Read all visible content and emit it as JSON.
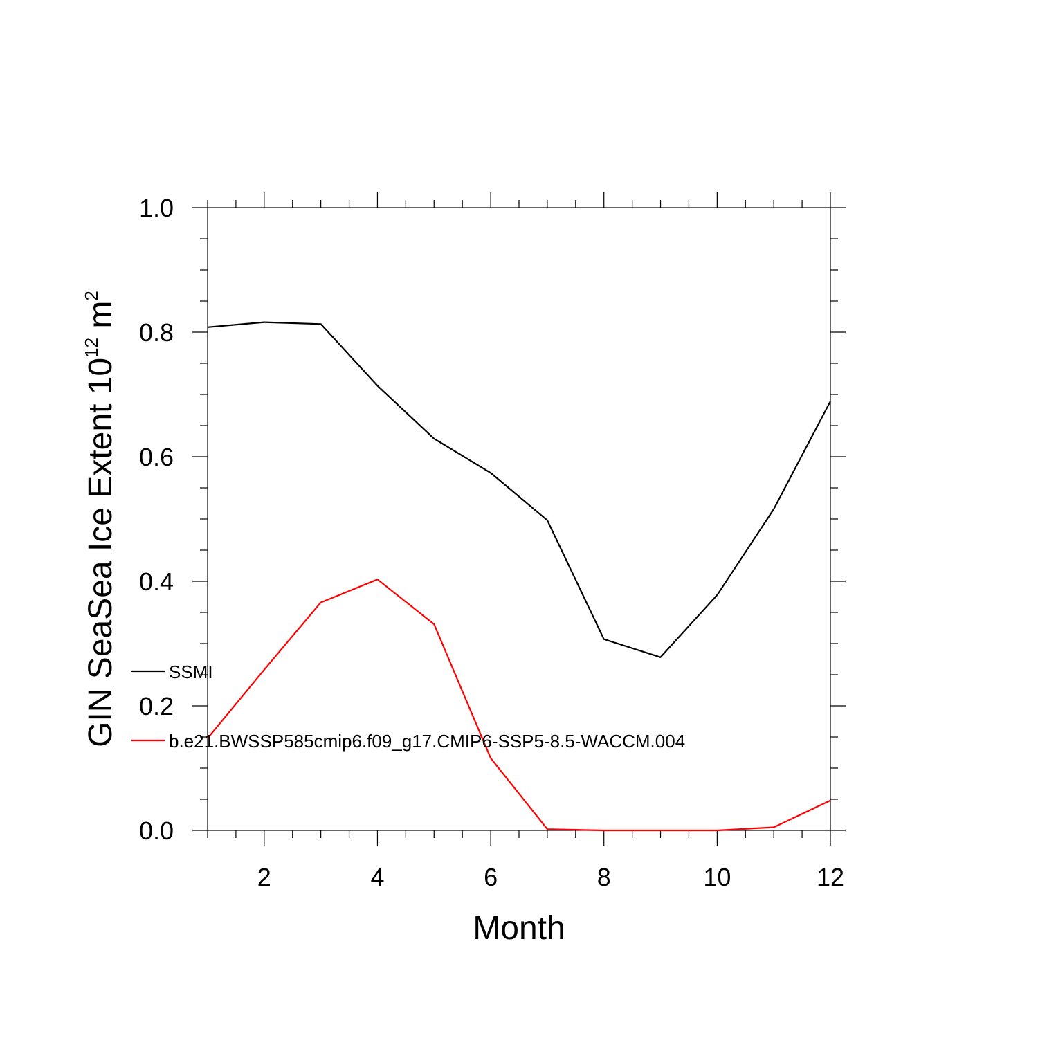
{
  "colors": {
    "frame": "#000000"
  },
  "chart_data": {
    "type": "line",
    "title": "",
    "xlabel": "Month",
    "ylabel": {
      "prefix": "GIN SeaSea Ice Extent 10",
      "exponent": "12",
      "unit": " m",
      "unit_exponent": "2"
    },
    "xlim": [
      1,
      12
    ],
    "ylim": [
      0.0,
      1.0
    ],
    "x_ticks": [
      2,
      4,
      6,
      8,
      10,
      12
    ],
    "x_tick_labels": [
      "2",
      "4",
      "6",
      "8",
      "10",
      "12"
    ],
    "y_ticks": [
      0.0,
      0.2,
      0.4,
      0.6,
      0.8,
      1.0
    ],
    "y_tick_labels": [
      "0.0",
      "0.2",
      "0.4",
      "0.6",
      "0.8",
      "1.0"
    ],
    "x_minor_step": 0.5,
    "y_minor_step": 0.05,
    "grid": false,
    "legend_position": "left",
    "x": [
      1,
      2,
      3,
      4,
      5,
      6,
      7,
      8,
      9,
      10,
      11,
      12
    ],
    "series": [
      {
        "name": "SSMI",
        "color": "#000000",
        "values": [
          0.808,
          0.816,
          0.813,
          0.714,
          0.629,
          0.574,
          0.498,
          0.307,
          0.278,
          0.378,
          0.516,
          0.689
        ]
      },
      {
        "name": "b.e21.BWSSP585cmip6.f09_g17.CMIP6-SSP5-8.5-WACCM.004",
        "color": "#ff0000",
        "values": [
          0.148,
          0.258,
          0.366,
          0.403,
          0.331,
          0.116,
          0.002,
          0.0,
          0.0,
          0.0,
          0.005,
          0.048
        ]
      }
    ]
  }
}
